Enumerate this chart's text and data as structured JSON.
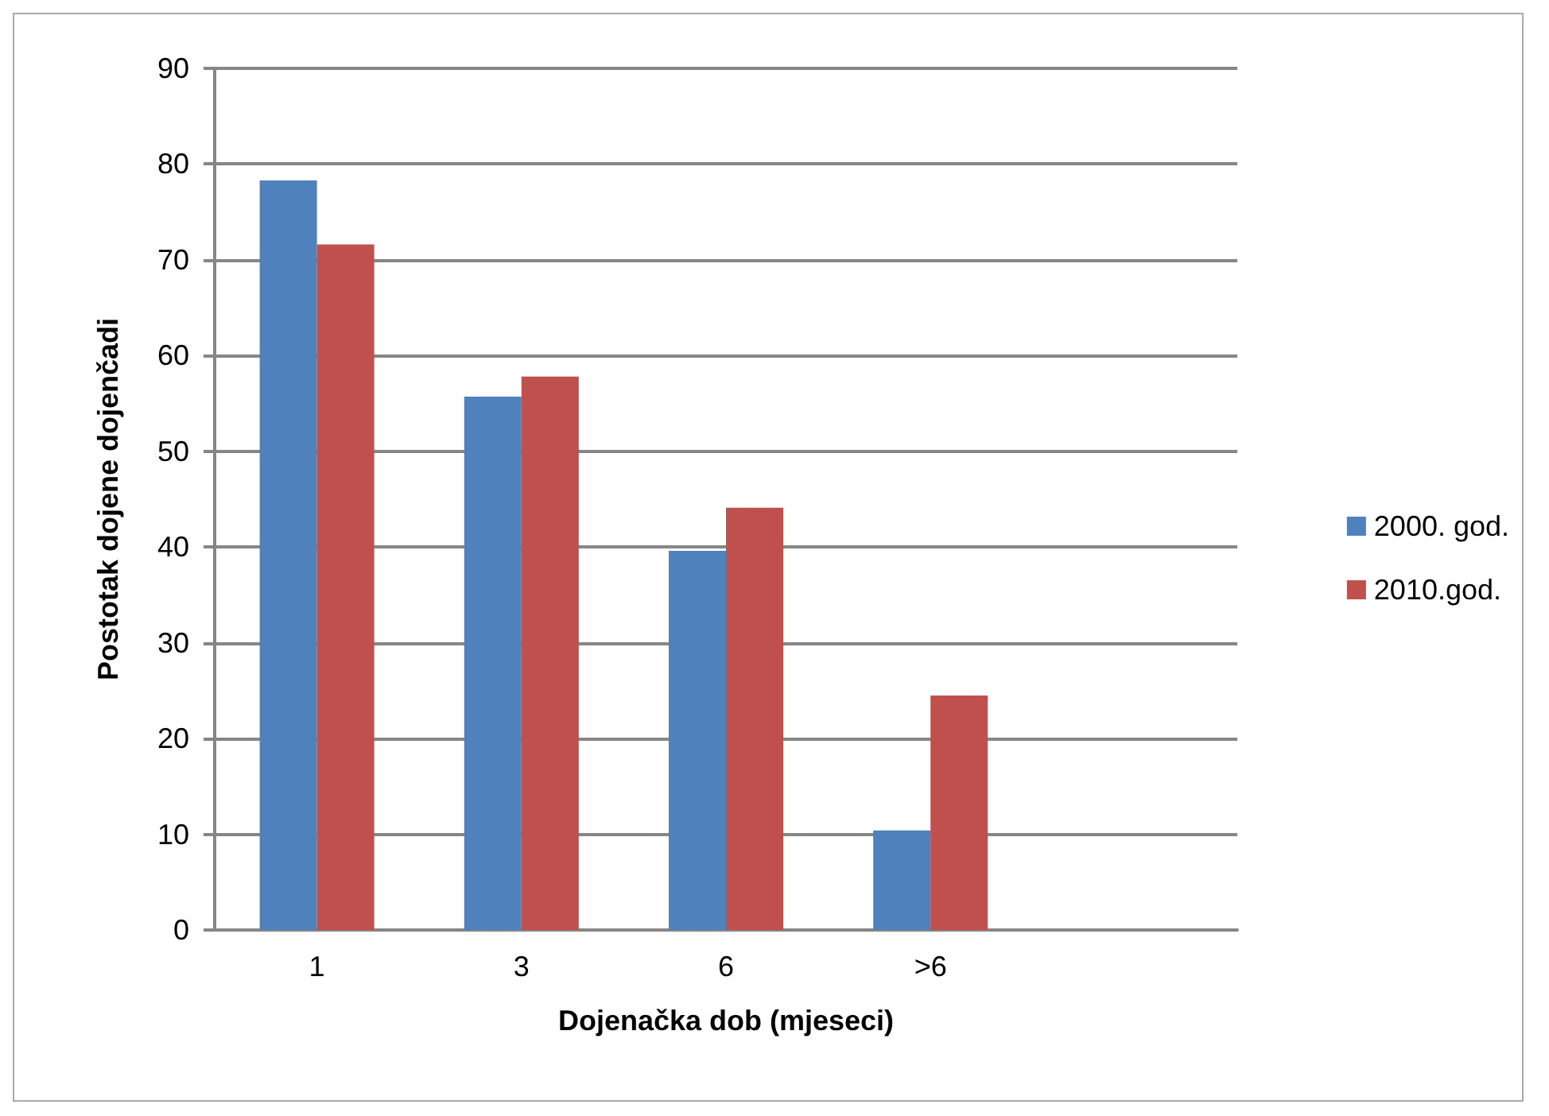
{
  "chart_data": {
    "type": "bar",
    "xlabel": "Dojenačka dob (mjeseci)",
    "ylabel": "Postotak dojene dojenčadi",
    "categories": [
      "1",
      "3",
      "6",
      ">6",
      null
    ],
    "series": [
      {
        "name": "2000. god.",
        "color": "#4f81bd",
        "values": [
          78.3,
          55.7,
          39.6,
          10.4,
          null
        ]
      },
      {
        "name": "2010.god.",
        "color": "#c0504d",
        "values": [
          71.6,
          57.8,
          44.1,
          24.5,
          null
        ]
      }
    ],
    "ylim": [
      0,
      90
    ],
    "yticks": [
      0,
      10,
      20,
      30,
      40,
      50,
      60,
      70,
      80,
      90
    ],
    "grid": "y",
    "legend": "right"
  }
}
